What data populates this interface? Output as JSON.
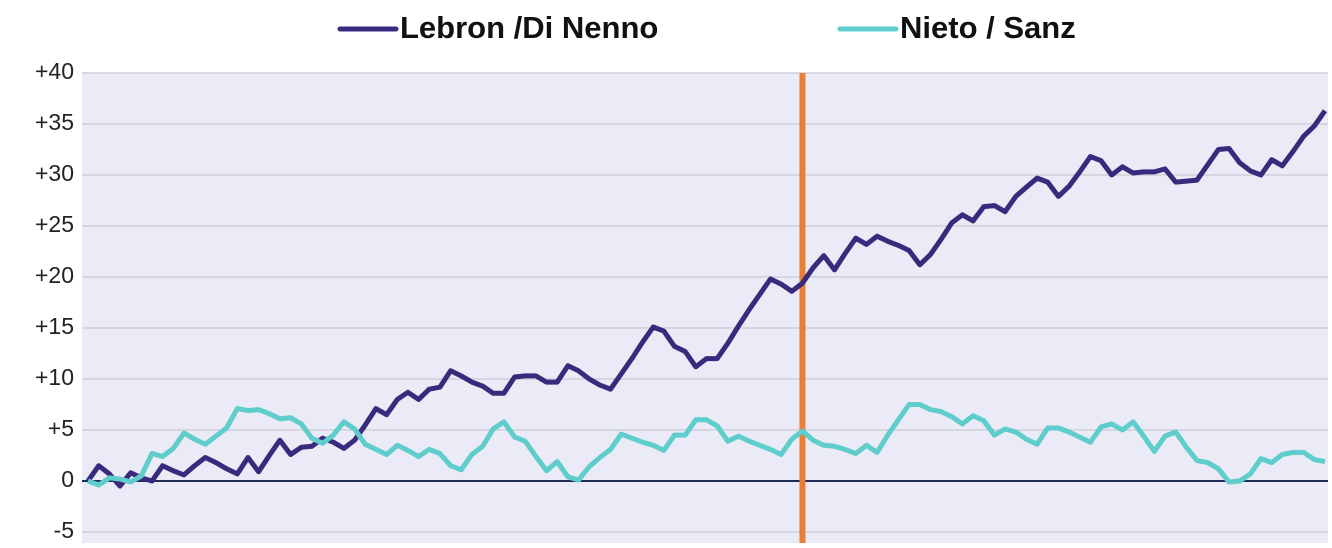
{
  "chart_data": {
    "type": "line",
    "x": [
      0,
      1,
      2,
      3,
      4,
      5,
      6,
      7,
      8,
      9,
      10,
      11,
      12,
      13,
      14,
      15,
      16,
      17,
      18,
      19,
      20,
      21,
      22,
      23,
      24,
      25,
      26,
      27,
      28,
      29,
      30,
      31,
      32,
      33,
      34,
      35,
      36,
      37,
      38,
      39,
      40,
      41,
      42,
      43,
      44,
      45,
      46,
      47,
      48,
      49,
      50,
      51,
      52,
      53,
      54,
      55,
      56,
      57,
      58,
      59,
      60,
      61,
      62,
      63,
      64,
      65,
      66,
      67,
      68,
      69,
      70,
      71,
      72,
      73,
      74,
      75,
      76,
      77,
      78,
      79,
      80,
      81,
      82,
      83,
      84,
      85,
      86,
      87,
      88,
      89,
      90,
      91,
      92,
      93,
      94,
      95,
      96,
      97,
      98,
      99,
      100,
      101,
      102,
      103,
      104,
      105,
      106,
      107,
      108,
      109,
      110,
      111,
      112,
      113,
      114,
      115,
      116
    ],
    "xlim": [
      0,
      116
    ],
    "ylim": [
      -5,
      40
    ],
    "yticks": [
      {
        "value": 40,
        "label": "+40"
      },
      {
        "value": 35,
        "label": "+35"
      },
      {
        "value": 30,
        "label": "+30"
      },
      {
        "value": 25,
        "label": "+25"
      },
      {
        "value": 20,
        "label": "+20"
      },
      {
        "value": 15,
        "label": "+15"
      },
      {
        "value": 10,
        "label": "+10"
      },
      {
        "value": 5,
        "label": "+5"
      },
      0,
      -5
    ],
    "grid": true,
    "reference_line": {
      "x": 67,
      "color": "#ed7d31"
    },
    "series": [
      {
        "name": "Lebron /Di Nenno",
        "color": "#3a2a7d",
        "values": [
          0,
          1.5,
          0.7,
          -0.5,
          0.8,
          0.3,
          0,
          1.5,
          1,
          0.6,
          1.5,
          2.3,
          1.8,
          1.2,
          0.7,
          2.3,
          0.9,
          2.5,
          4,
          2.6,
          3.3,
          3.4,
          4.2,
          3.8,
          3.2,
          4,
          5.5,
          7.1,
          6.5,
          8,
          8.7,
          8,
          9,
          9.2,
          10.8,
          10.3,
          9.7,
          9.3,
          8.6,
          8.6,
          10.2,
          10.3,
          10.3,
          9.7,
          9.7,
          11.3,
          10.8,
          10,
          9.4,
          9,
          10.5,
          12,
          13.6,
          15.1,
          14.7,
          13.2,
          12.7,
          11.2,
          12,
          12,
          13.5,
          15.2,
          16.8,
          18.3,
          19.8,
          19.3,
          18.6,
          19.4,
          20.9,
          22.1,
          20.7,
          22.3,
          23.8,
          23.2,
          24,
          23.5,
          23.1,
          22.6,
          21.2,
          22.2,
          23.7,
          25.3,
          26.1,
          25.5,
          26.9,
          27,
          26.4,
          27.9,
          28.8,
          29.7,
          29.3,
          27.9,
          28.9,
          30.3,
          31.8,
          31.4,
          30,
          30.8,
          30.2,
          30.3,
          30.3,
          30.6,
          29.3,
          29.4,
          29.5,
          31,
          32.5,
          32.6,
          31.2,
          30.4,
          30,
          31.5,
          30.9,
          32.3,
          33.8,
          34.8,
          36.3
        ]
      },
      {
        "name": "Nieto / Sanz",
        "color": "#5ecdcb",
        "values": [
          0,
          -0.4,
          0.3,
          0.2,
          -0.1,
          0.5,
          2.7,
          2.4,
          3.2,
          4.7,
          4.1,
          3.6,
          4.4,
          5.2,
          7.1,
          6.9,
          7,
          6.6,
          6.1,
          6.2,
          5.6,
          4.2,
          3.7,
          4.5,
          5.8,
          5.1,
          3.6,
          3.1,
          2.6,
          3.5,
          3,
          2.4,
          3.1,
          2.7,
          1.5,
          1.1,
          2.6,
          3.4,
          5.1,
          5.8,
          4.3,
          3.9,
          2.4,
          1,
          1.9,
          0.4,
          0.1,
          1.4,
          2.3,
          3.1,
          4.6,
          4.2,
          3.8,
          3.5,
          3,
          4.5,
          4.5,
          6,
          6,
          5.4,
          3.9,
          4.4,
          3.9,
          3.5,
          3.1,
          2.6,
          4.1,
          4.9,
          4,
          3.5,
          3.4,
          3.1,
          2.7,
          3.5,
          2.8,
          4.5,
          6,
          7.5,
          7.5,
          7,
          6.8,
          6.3,
          5.6,
          6.4,
          5.9,
          4.5,
          5.1,
          4.8,
          4.1,
          3.6,
          5.2,
          5.2,
          4.8,
          4.3,
          3.8,
          5.3,
          5.6,
          5,
          5.8,
          4.4,
          2.9,
          4.4,
          4.8,
          3.3,
          2,
          1.8,
          1.2,
          -0.1,
          0,
          0.7,
          2.2,
          1.8,
          2.6,
          2.8,
          2.8,
          2.1,
          1.9
        ]
      }
    ]
  }
}
